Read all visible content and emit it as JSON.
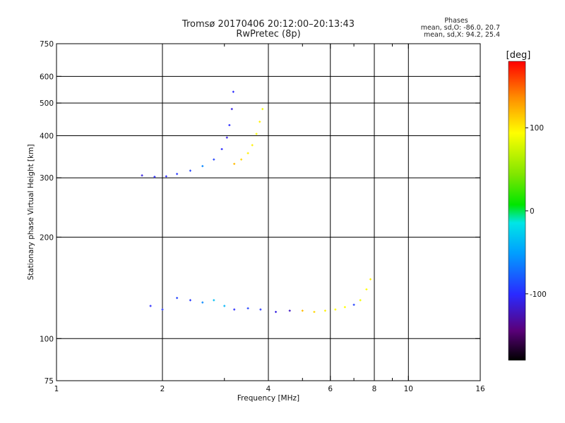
{
  "chart_data": {
    "type": "scatter",
    "title": "Tromsø 20170406 20:12:00–20:13:43",
    "subtitle": "RwPretec (8p)",
    "xlabel": "Frequency [MHz]",
    "ylabel": "Stationary phase Virtual Height [km]",
    "xscale": "log",
    "yscale": "log",
    "xlim": [
      1,
      16
    ],
    "ylim": [
      75,
      750
    ],
    "x_ticks": [
      1,
      2,
      4,
      6,
      8,
      10,
      16
    ],
    "x_tick_labels": [
      "1",
      "2",
      "4",
      "6",
      "8",
      "10",
      "16"
    ],
    "x_minor_ticks": [
      3,
      5,
      7,
      9
    ],
    "y_ticks": [
      75,
      100,
      200,
      300,
      400,
      500,
      600,
      750
    ],
    "y_tick_labels": [
      "75",
      "100",
      "200",
      "300",
      "400",
      "500",
      "600",
      "750"
    ],
    "grid": true,
    "phases_box": {
      "heading": "Phases",
      "line_o": "mean, sd,O: -86.0, 20.7",
      "line_x": "mean, sd,X:  94.2, 25.4"
    },
    "colorbar": {
      "label": "[deg]",
      "range": [
        -180,
        180
      ],
      "ticks": [
        100,
        0,
        -100
      ],
      "tick_labels": [
        "100",
        "0",
        "-100"
      ]
    },
    "series": [
      {
        "group": "E region trace",
        "points": [
          {
            "x": 1.85,
            "y": 125,
            "phase": -100
          },
          {
            "x": 2.0,
            "y": 122,
            "phase": -95
          },
          {
            "x": 2.2,
            "y": 132,
            "phase": -90
          },
          {
            "x": 2.4,
            "y": 130,
            "phase": -95
          },
          {
            "x": 2.6,
            "y": 128,
            "phase": -60
          },
          {
            "x": 2.8,
            "y": 130,
            "phase": -35
          },
          {
            "x": 3.0,
            "y": 125,
            "phase": -40
          },
          {
            "x": 3.2,
            "y": 122,
            "phase": -100
          },
          {
            "x": 3.5,
            "y": 123,
            "phase": -90
          },
          {
            "x": 3.8,
            "y": 122,
            "phase": -95
          },
          {
            "x": 4.2,
            "y": 120,
            "phase": -110
          },
          {
            "x": 4.6,
            "y": 121,
            "phase": -120
          },
          {
            "x": 5.0,
            "y": 121,
            "phase": 120
          },
          {
            "x": 5.4,
            "y": 120,
            "phase": 110
          },
          {
            "x": 5.8,
            "y": 121,
            "phase": 100
          },
          {
            "x": 6.2,
            "y": 122,
            "phase": 95
          },
          {
            "x": 6.6,
            "y": 124,
            "phase": 95
          },
          {
            "x": 7.0,
            "y": 126,
            "phase": -90
          },
          {
            "x": 7.3,
            "y": 130,
            "phase": 90
          },
          {
            "x": 7.6,
            "y": 140,
            "phase": 95
          },
          {
            "x": 7.8,
            "y": 150,
            "phase": 100
          }
        ]
      },
      {
        "group": "F region O trace",
        "points": [
          {
            "x": 1.75,
            "y": 305,
            "phase": -110
          },
          {
            "x": 1.9,
            "y": 302,
            "phase": -100
          },
          {
            "x": 2.05,
            "y": 303,
            "phase": -100
          },
          {
            "x": 2.2,
            "y": 308,
            "phase": -95
          },
          {
            "x": 2.4,
            "y": 315,
            "phase": -90
          },
          {
            "x": 2.6,
            "y": 325,
            "phase": -60
          },
          {
            "x": 2.8,
            "y": 340,
            "phase": -90
          },
          {
            "x": 2.95,
            "y": 365,
            "phase": -100
          },
          {
            "x": 3.05,
            "y": 395,
            "phase": -110
          },
          {
            "x": 3.1,
            "y": 430,
            "phase": -100
          },
          {
            "x": 3.15,
            "y": 480,
            "phase": -110
          },
          {
            "x": 3.18,
            "y": 540,
            "phase": -100
          }
        ]
      },
      {
        "group": "F region X trace",
        "points": [
          {
            "x": 3.2,
            "y": 330,
            "phase": 120
          },
          {
            "x": 3.35,
            "y": 340,
            "phase": 110
          },
          {
            "x": 3.5,
            "y": 355,
            "phase": 100
          },
          {
            "x": 3.6,
            "y": 375,
            "phase": 100
          },
          {
            "x": 3.7,
            "y": 405,
            "phase": 95
          },
          {
            "x": 3.78,
            "y": 440,
            "phase": 100
          },
          {
            "x": 3.85,
            "y": 480,
            "phase": 90
          }
        ]
      }
    ]
  }
}
